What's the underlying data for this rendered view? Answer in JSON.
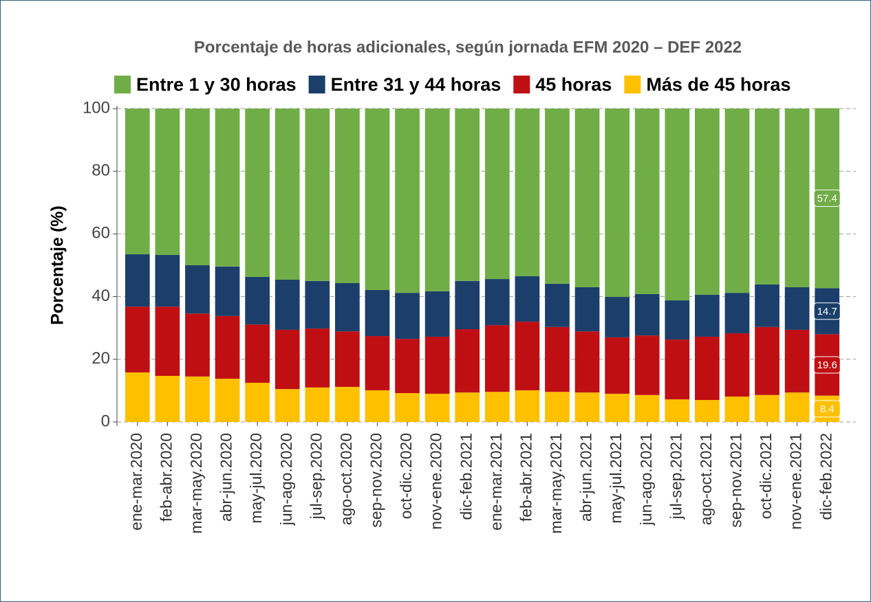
{
  "chart_data": {
    "type": "stacked_bar",
    "title": "Porcentaje de horas adicionales, según jornada EFM 2020 – DEF 2022",
    "y_label": "Porcentaje (%)",
    "categories": [
      "ene-mar.2020",
      "feb-abr.2020",
      "mar-may.2020",
      "abr-jun.2020",
      "may-jul.2020",
      "jun-ago.2020",
      "jul-sep.2020",
      "ago-oct.2020",
      "sep-nov.2020",
      "oct-dic.2020",
      "nov-ene.2020",
      "dic-feb.2021",
      "ene-mar.2021",
      "feb-abr.2021",
      "mar-may.2021",
      "abr-jun.2021",
      "may-jul.2021",
      "jun-ago.2021",
      "jul-sep.2021",
      "ago-oct.2021",
      "sep-nov.2021",
      "oct-dic.2021",
      "nov-ene.2021",
      "dic-feb.2022"
    ],
    "series": [
      {
        "name": "Más de 45 horas",
        "color": "#ffc000",
        "values": [
          15.8,
          14.7,
          14.5,
          13.8,
          12.5,
          10.5,
          11.0,
          11.2,
          10.1,
          9.2,
          9.0,
          9.4,
          9.6,
          10.1,
          9.6,
          9.4,
          9.0,
          8.6,
          7.2,
          7.0,
          8.1,
          8.6,
          9.4,
          8.4
        ]
      },
      {
        "name": "45 horas",
        "color": "#c00f13",
        "values": [
          21.0,
          22.1,
          20.1,
          20.0,
          18.6,
          18.9,
          18.8,
          17.7,
          17.3,
          17.3,
          18.2,
          20.2,
          21.3,
          21.9,
          20.7,
          19.5,
          18.0,
          19.0,
          19.1,
          20.2,
          20.2,
          21.7,
          20.0,
          19.6
        ]
      },
      {
        "name": "Entre 31 y 44 horas",
        "color": "#1b3f6a",
        "values": [
          16.7,
          16.5,
          15.4,
          15.8,
          15.2,
          16.0,
          15.2,
          15.4,
          14.7,
          14.7,
          14.5,
          15.4,
          14.7,
          14.5,
          13.8,
          14.1,
          12.9,
          13.2,
          12.5,
          13.4,
          12.9,
          13.6,
          13.6,
          14.7
        ]
      },
      {
        "name": "Entre 1 y 30 horas",
        "color": "#70ad47",
        "values": [
          46.5,
          46.7,
          50.0,
          50.4,
          53.7,
          54.6,
          55.0,
          55.7,
          57.9,
          58.8,
          58.3,
          55.0,
          54.4,
          53.5,
          55.9,
          57.0,
          60.1,
          59.2,
          61.2,
          59.4,
          58.8,
          56.1,
          57.0,
          57.4
        ]
      }
    ],
    "legend_order": [
      3,
      2,
      1,
      0
    ],
    "data_labels": "last",
    "ylim": [
      0,
      100
    ],
    "yticks": [
      0,
      20,
      40,
      60,
      80,
      100
    ],
    "grid": true
  }
}
